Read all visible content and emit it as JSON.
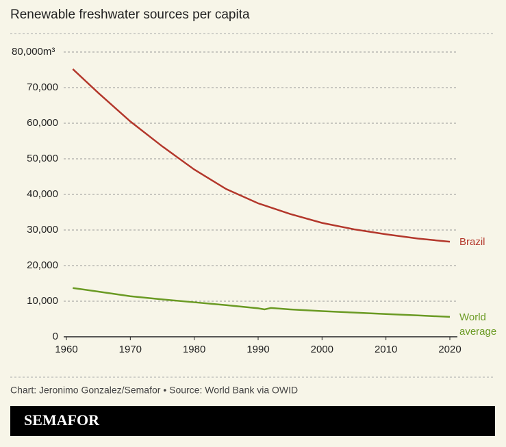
{
  "chart_data": {
    "type": "line",
    "title": "Renewable freshwater sources per capita",
    "x": [
      1961,
      1965,
      1970,
      1975,
      1980,
      1985,
      1990,
      1991,
      1992,
      1995,
      2000,
      2005,
      2010,
      2015,
      2020
    ],
    "series": [
      {
        "name": "Brazil",
        "color": "#b3372b",
        "values": [
          75200,
          68500,
          60500,
          53500,
          47000,
          41500,
          37500,
          36900,
          36300,
          34500,
          32000,
          30200,
          28800,
          27600,
          26700
        ]
      },
      {
        "name": "World average",
        "color": "#6a9a23",
        "values": [
          13700,
          12700,
          11400,
          10500,
          9700,
          8900,
          8000,
          7700,
          8100,
          7700,
          7200,
          6800,
          6400,
          6000,
          5600
        ]
      }
    ],
    "xlim": [
      1960,
      2020
    ],
    "xticks": [
      1960,
      1970,
      1980,
      1990,
      2000,
      2010,
      2020
    ],
    "ylim": [
      0,
      80000
    ],
    "yticks": [
      0,
      {
        "value": 10000,
        "label": "10,000"
      },
      {
        "value": 20000,
        "label": "20,000"
      },
      {
        "value": 30000,
        "label": "30,000"
      },
      {
        "value": 40000,
        "label": "40,000"
      },
      {
        "value": 50000,
        "label": "50,000"
      },
      {
        "value": 60000,
        "label": "60,000"
      },
      {
        "value": 70000,
        "label": "70,000"
      },
      {
        "value": 80000,
        "label": "80,000m³"
      }
    ],
    "grid": true,
    "source": "Chart: Jeronimo Gonzalez/Semafor • Source: World Bank via OWID",
    "logo": "SEMAFOR"
  }
}
